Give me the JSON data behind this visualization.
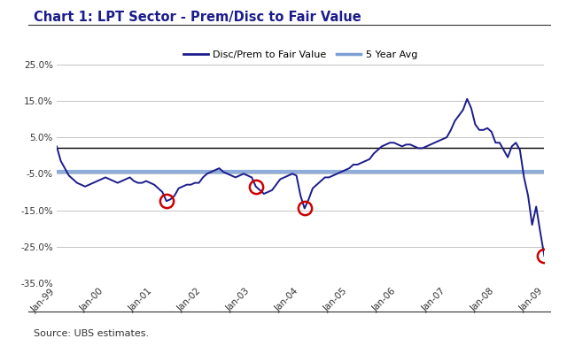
{
  "title": "Chart 1: LPT Sector - Prem/Disc to Fair Value",
  "source_text": "Source: UBS estimates.",
  "line_color": "#1C1C8C",
  "avg_line_color": "#7B9FD4",
  "zero_line_color": "#000000",
  "circle_color": "#CC0000",
  "ylim": [
    -35.0,
    30.0
  ],
  "yticks": [
    -35.0,
    -25.0,
    -15.0,
    -5.0,
    5.0,
    15.0,
    25.0
  ],
  "ytick_labels": [
    "-35.0%",
    "-25.0%",
    "-15.0%",
    "-5.0%",
    "5.0%",
    "15.0%",
    "25.0%"
  ],
  "five_year_avg": -4.5,
  "zero_line_y": 2.0,
  "legend_label_1": "Disc/Prem to Fair Value",
  "legend_label_2": "5 Year Avg",
  "background_color": "#FFFFFF",
  "plot_bg_color": "#FFFFFF",
  "values": [
    2.5,
    -1.5,
    -3.5,
    -5.5,
    -6.5,
    -7.5,
    -8.0,
    -8.5,
    -8.0,
    -7.5,
    -7.0,
    -6.5,
    -6.0,
    -6.5,
    -7.0,
    -7.5,
    -7.0,
    -6.5,
    -6.0,
    -7.0,
    -7.5,
    -7.5,
    -7.0,
    -7.5,
    -8.0,
    -9.0,
    -10.0,
    -12.5,
    -12.0,
    -11.0,
    -9.0,
    -8.5,
    -8.0,
    -8.0,
    -7.5,
    -7.5,
    -6.0,
    -5.0,
    -4.5,
    -4.0,
    -3.5,
    -4.5,
    -5.0,
    -5.5,
    -6.0,
    -5.5,
    -5.0,
    -5.5,
    -6.0,
    -8.5,
    -9.5,
    -10.5,
    -10.0,
    -9.5,
    -8.0,
    -6.5,
    -6.0,
    -5.5,
    -5.0,
    -5.5,
    -11.0,
    -14.5,
    -12.0,
    -9.0,
    -8.0,
    -7.0,
    -6.0,
    -6.0,
    -5.5,
    -5.0,
    -4.5,
    -4.0,
    -3.5,
    -2.5,
    -2.5,
    -2.0,
    -1.5,
    -1.0,
    0.5,
    1.5,
    2.5,
    3.0,
    3.5,
    3.5,
    3.0,
    2.5,
    3.0,
    3.0,
    2.5,
    2.0,
    2.0,
    2.5,
    3.0,
    3.5,
    4.0,
    4.5,
    5.0,
    7.0,
    9.5,
    11.0,
    12.5,
    15.5,
    13.0,
    8.5,
    7.0,
    7.0,
    7.5,
    6.5,
    3.5,
    3.5,
    1.5,
    -0.5,
    2.5,
    3.5,
    1.5,
    -6.0,
    -11.0,
    -19.0,
    -14.0,
    -21.0,
    -27.5
  ],
  "circle_indices": [
    27,
    49,
    61,
    120
  ],
  "xtick_indices": [
    0,
    12,
    24,
    36,
    48,
    60,
    72,
    84,
    96,
    108,
    120
  ],
  "xtick_labels": [
    "Jan-99",
    "Jan-00",
    "Jan-01",
    "Jan-02",
    "Jan-03",
    "Jan-04",
    "Jan-05",
    "Jan-06",
    "Jan-07",
    "Jan-08",
    "Jan-09"
  ]
}
